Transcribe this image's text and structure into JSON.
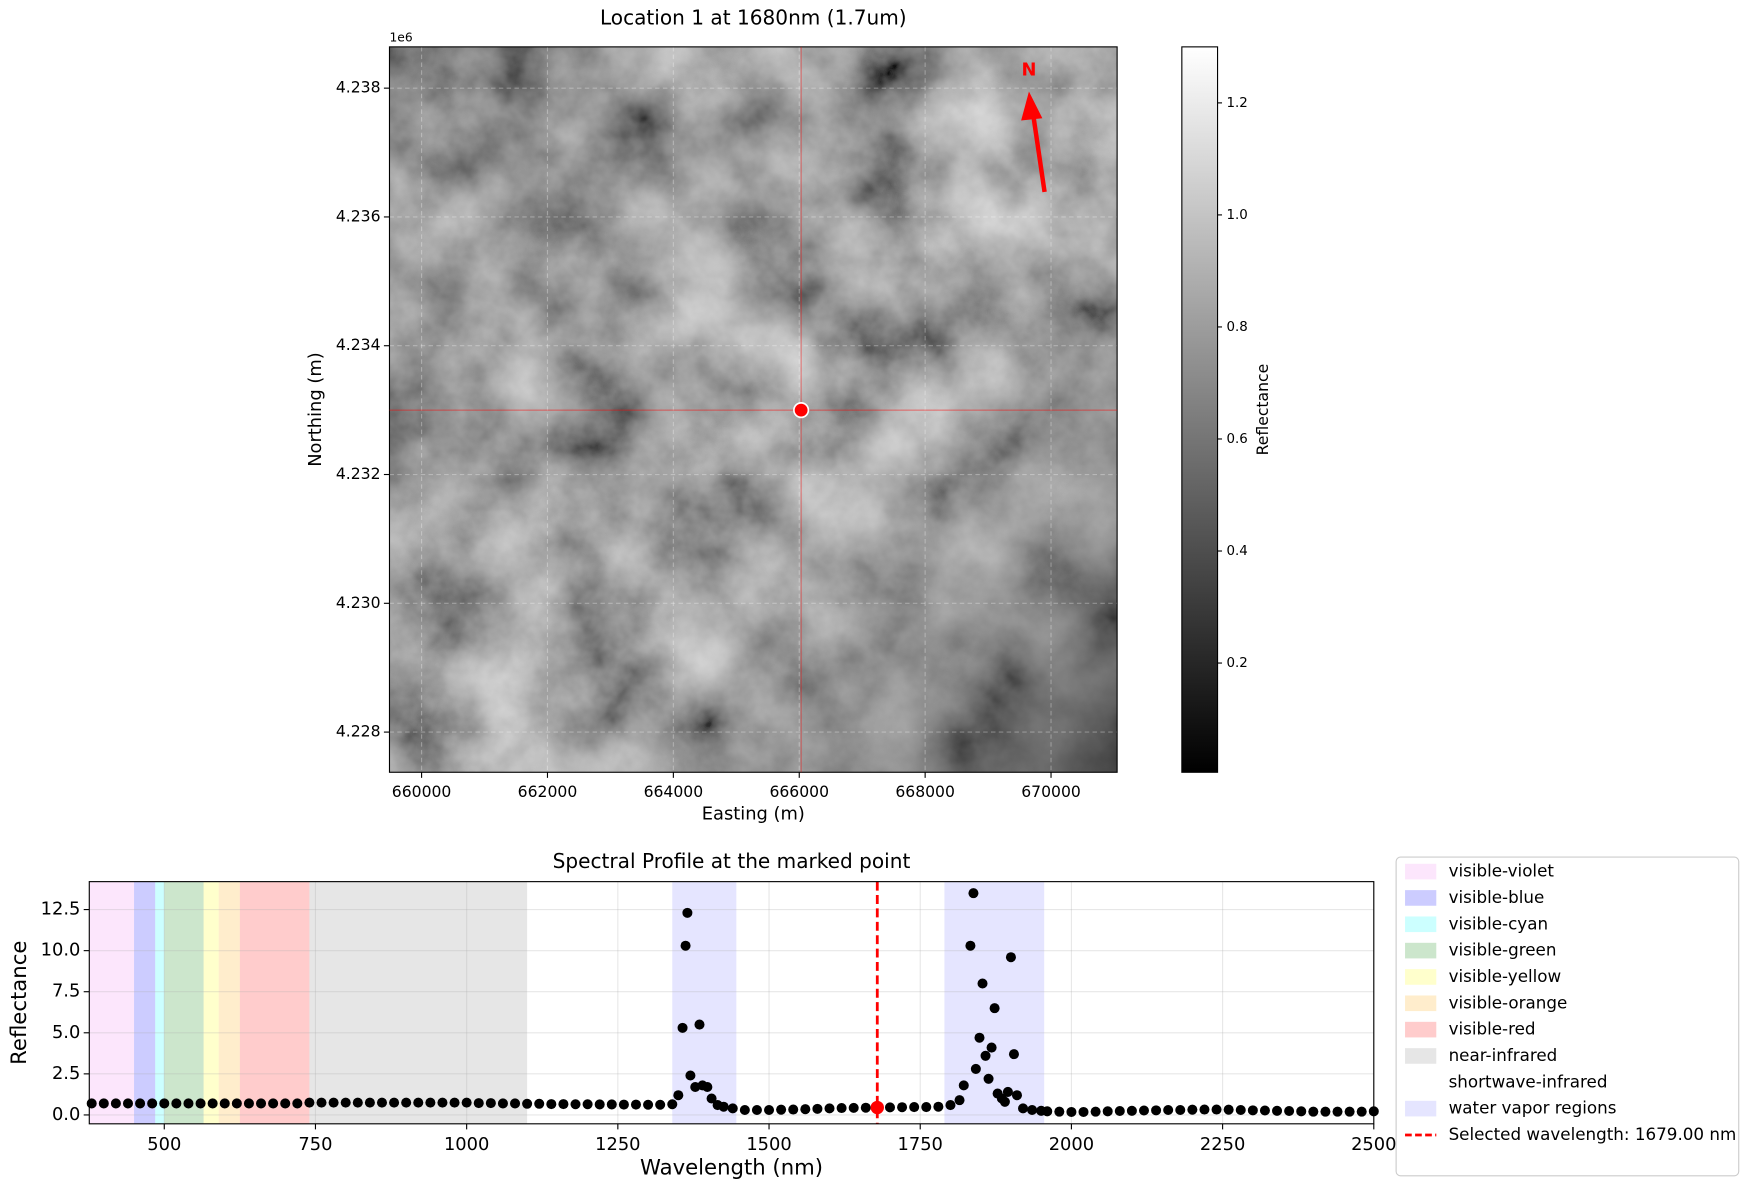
{
  "chart_data": [
    {
      "type": "image",
      "title": "Location 1 at 1680nm (1.7um)",
      "x_label": "Easting (m)",
      "y_label": "Northing (m)",
      "y_offset_label": "1e6",
      "xlim": [
        659490,
        671050
      ],
      "ylim": [
        4227376,
        4238641
      ],
      "xticks": [
        660000,
        662000,
        664000,
        666000,
        668000,
        670000
      ],
      "yticks": [
        {
          "value": 4228000,
          "label": "4.228"
        },
        {
          "value": 4230000,
          "label": "4.230"
        },
        {
          "value": 4232000,
          "label": "4.232"
        },
        {
          "value": 4234000,
          "label": "4.234"
        },
        {
          "value": 4236000,
          "label": "4.236"
        },
        {
          "value": 4238000,
          "label": "4.238"
        }
      ],
      "grid": true,
      "marker": {
        "x": 666030,
        "y": 4233000,
        "color": "red"
      },
      "north_label": "N",
      "colorbar": {
        "label": "Reflectance",
        "lim": [
          0.005,
          1.3
        ],
        "ticks": [
          0.2,
          0.4,
          0.6,
          0.8,
          {
            "value": 1,
            "label": "1.0"
          },
          1.2
        ]
      }
    },
    {
      "type": "scatter",
      "title": "Spectral Profile at the marked point",
      "x_label": "Wavelength (nm)",
      "y_label": "Reflectance",
      "xlim": [
        376,
        2500
      ],
      "ylim": [
        -0.54,
        14.2
      ],
      "xticks": [
        500,
        750,
        1000,
        1250,
        1500,
        1750,
        2000,
        2250,
        2500
      ],
      "yticks": [
        {
          "value": 0,
          "label": "0.0"
        },
        2.5,
        {
          "value": 5,
          "label": "5.0"
        },
        7.5,
        {
          "value": 10,
          "label": "10.0"
        },
        12.5
      ],
      "grid": true,
      "color": "black",
      "legend": "right",
      "x": [
        380,
        400,
        420,
        440,
        460,
        480,
        500,
        520,
        540,
        560,
        580,
        600,
        620,
        640,
        660,
        680,
        700,
        720,
        740,
        760,
        780,
        800,
        820,
        840,
        860,
        880,
        900,
        920,
        940,
        960,
        980,
        1000,
        1020,
        1040,
        1060,
        1080,
        1100,
        1120,
        1140,
        1160,
        1180,
        1200,
        1220,
        1240,
        1260,
        1280,
        1300,
        1320,
        1340,
        1350,
        1357,
        1362,
        1365,
        1370,
        1378,
        1385,
        1390,
        1398,
        1405,
        1415,
        1425,
        1440,
        1460,
        1480,
        1500,
        1520,
        1540,
        1560,
        1580,
        1600,
        1620,
        1640,
        1660,
        1680,
        1700,
        1720,
        1740,
        1760,
        1780,
        1800,
        1815,
        1822,
        1833,
        1838,
        1842,
        1848,
        1853,
        1858,
        1863,
        1868,
        1873,
        1878,
        1885,
        1890,
        1895,
        1900,
        1905,
        1910,
        1920,
        1935,
        1950,
        1960,
        1980,
        2000,
        2020,
        2040,
        2060,
        2080,
        2100,
        2120,
        2140,
        2160,
        2180,
        2200,
        2220,
        2240,
        2260,
        2280,
        2300,
        2320,
        2340,
        2360,
        2380,
        2400,
        2420,
        2440,
        2460,
        2480,
        2500
      ],
      "values": [
        0.7,
        0.7,
        0.7,
        0.7,
        0.7,
        0.7,
        0.7,
        0.7,
        0.7,
        0.7,
        0.7,
        0.7,
        0.7,
        0.7,
        0.7,
        0.7,
        0.7,
        0.7,
        0.75,
        0.75,
        0.75,
        0.75,
        0.75,
        0.75,
        0.75,
        0.75,
        0.75,
        0.75,
        0.75,
        0.75,
        0.75,
        0.75,
        0.72,
        0.72,
        0.7,
        0.7,
        0.68,
        0.68,
        0.66,
        0.66,
        0.65,
        0.65,
        0.64,
        0.64,
        0.63,
        0.63,
        0.62,
        0.62,
        0.65,
        1.2,
        5.3,
        10.3,
        12.3,
        2.4,
        1.7,
        5.5,
        1.8,
        1.7,
        1.0,
        0.6,
        0.5,
        0.4,
        0.3,
        0.3,
        0.3,
        0.32,
        0.33,
        0.35,
        0.37,
        0.4,
        0.42,
        0.43,
        0.44,
        0.45,
        0.46,
        0.47,
        0.48,
        0.48,
        0.5,
        0.6,
        0.9,
        1.8,
        10.3,
        13.5,
        2.8,
        4.7,
        8.0,
        3.6,
        2.2,
        4.1,
        6.5,
        1.3,
        1.0,
        0.8,
        1.4,
        9.6,
        3.7,
        1.2,
        0.4,
        0.3,
        0.25,
        0.22,
        0.2,
        0.18,
        0.18,
        0.2,
        0.22,
        0.24,
        0.25,
        0.27,
        0.28,
        0.3,
        0.3,
        0.32,
        0.33,
        0.33,
        0.32,
        0.3,
        0.28,
        0.27,
        0.25,
        0.24,
        0.22,
        0.2,
        0.2,
        0.2,
        0.2,
        0.2,
        0.22
      ],
      "regions": [
        {
          "name": "visible-violet",
          "color": "#ee82ee",
          "alpha": 0.2,
          "ranges": [
            [
              376,
              450
            ]
          ]
        },
        {
          "name": "visible-blue",
          "color": "#0000ff",
          "alpha": 0.2,
          "ranges": [
            [
              450,
              485
            ]
          ]
        },
        {
          "name": "visible-cyan",
          "color": "#00ffff",
          "alpha": 0.2,
          "ranges": [
            [
              485,
              500
            ]
          ]
        },
        {
          "name": "visible-green",
          "color": "#008000",
          "alpha": 0.2,
          "ranges": [
            [
              500,
              565
            ]
          ]
        },
        {
          "name": "visible-yellow",
          "color": "#ffff00",
          "alpha": 0.2,
          "ranges": [
            [
              565,
              590
            ]
          ]
        },
        {
          "name": "visible-orange",
          "color": "#ffa500",
          "alpha": 0.2,
          "ranges": [
            [
              590,
              625
            ]
          ]
        },
        {
          "name": "visible-red",
          "color": "#ff0000",
          "alpha": 0.2,
          "ranges": [
            [
              625,
              740
            ]
          ]
        },
        {
          "name": "near-infrared",
          "color": "#808080",
          "alpha": 0.2,
          "ranges": [
            [
              740,
              1100
            ]
          ]
        },
        {
          "name": "shortwave-infrared",
          "color": "#ffffff",
          "alpha": 0.2,
          "ranges": [
            [
              1100,
              2500
            ]
          ]
        },
        {
          "name": "water vapor regions",
          "color": "#0000ff",
          "alpha": 0.1,
          "ranges": [
            [
              1340,
              1446
            ],
            [
              1790,
              1955
            ]
          ]
        }
      ],
      "selected": {
        "name": "Selected wavelength: 1679.00 nm",
        "value": 1679,
        "point_value": 0.45,
        "color": "red"
      }
    }
  ]
}
